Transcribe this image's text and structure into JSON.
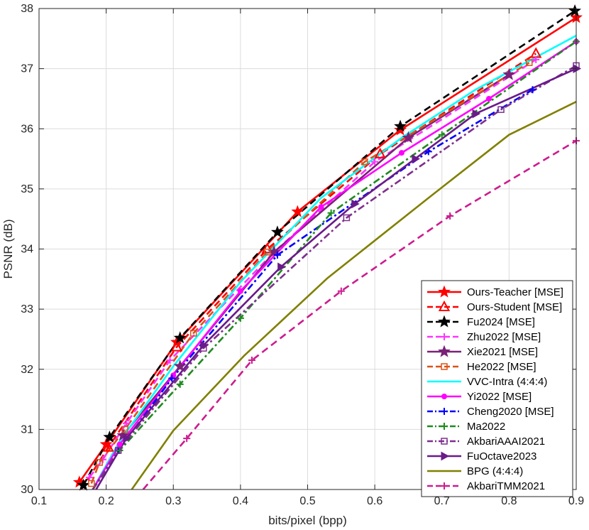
{
  "chart_data": {
    "type": "line",
    "title": "",
    "xlabel": "bits/pixel (bpp)",
    "ylabel": "PSNR (dB)",
    "xlim": [
      0.1,
      0.9
    ],
    "ylim": [
      30,
      38
    ],
    "grid": true,
    "legend_position": "bottom-right",
    "xticks": [
      "0.1",
      "0.2",
      "0.3",
      "0.4",
      "0.5",
      "0.6",
      "0.7",
      "0.8",
      "0.9"
    ],
    "yticks": [
      "30",
      "31",
      "32",
      "33",
      "34",
      "35",
      "36",
      "37",
      "38"
    ],
    "series": [
      {
        "name": "Ours-Teacher [MSE]",
        "color": "#ff0000",
        "dash": "solid",
        "marker": "star",
        "x": [
          0.16,
          0.2,
          0.305,
          0.485,
          0.638,
          0.9
        ],
        "y": [
          30.12,
          30.75,
          32.45,
          34.62,
          35.98,
          37.85
        ]
      },
      {
        "name": "Ours-Student [MSE]",
        "color": "#ff0000",
        "dash": "dashed",
        "marker": "triangle",
        "x": [
          0.163,
          0.203,
          0.305,
          0.44,
          0.608,
          0.84
        ],
        "y": [
          30.0,
          30.7,
          32.37,
          34.0,
          35.58,
          37.25
        ]
      },
      {
        "name": "Fu2024 [MSE]",
        "color": "#000000",
        "dash": "dashed",
        "marker": "star",
        "x": [
          0.166,
          0.205,
          0.31,
          0.455,
          0.638,
          0.898
        ],
        "y": [
          30.07,
          30.87,
          32.52,
          34.28,
          36.04,
          37.96
        ]
      },
      {
        "name": "Zhu2022 [MSE]",
        "color": "#ff33ff",
        "dash": "dashed",
        "marker": "plus",
        "x": [
          0.175,
          0.195,
          0.23,
          0.295,
          0.45,
          0.6,
          0.84
        ],
        "y": [
          30.2,
          30.5,
          31.1,
          32.15,
          33.95,
          35.45,
          37.15
        ]
      },
      {
        "name": "Xie2021 [MSE]",
        "color": "#7a2178",
        "dash": "solid",
        "marker": "star",
        "x": [
          0.18,
          0.225,
          0.31,
          0.45,
          0.65,
          0.8
        ],
        "y": [
          30.0,
          30.9,
          32.05,
          33.95,
          35.85,
          36.9
        ]
      },
      {
        "name": "He2022 [MSE]",
        "color": "#d95319",
        "dash": "dashed",
        "marker": "square",
        "x": [
          0.178,
          0.19,
          0.228,
          0.33,
          0.44,
          0.585,
          0.83
        ],
        "y": [
          30.1,
          30.45,
          31.0,
          32.6,
          33.95,
          35.45,
          37.1
        ]
      },
      {
        "name": "VVC-Intra (4:4:4)",
        "color": "#00ffff",
        "dash": "solid",
        "marker": "none",
        "x": [
          0.18,
          0.22,
          0.3,
          0.4,
          0.52,
          0.64,
          0.75,
          0.9
        ],
        "y": [
          30.0,
          30.8,
          32.05,
          33.45,
          34.85,
          35.85,
          36.65,
          37.55
        ]
      },
      {
        "name": "Yi2022 [MSE]",
        "color": "#ff00ff",
        "dash": "solid",
        "marker": "circle",
        "x": [
          0.18,
          0.22,
          0.3,
          0.4,
          0.52,
          0.64,
          0.77,
          0.9
        ],
        "y": [
          30.0,
          30.75,
          31.9,
          33.3,
          34.7,
          35.6,
          36.5,
          37.45
        ]
      },
      {
        "name": "Cheng2020 [MSE]",
        "color": "#0000ff",
        "dash": "dashdot",
        "marker": "plus",
        "x": [
          0.18,
          0.218,
          0.298,
          0.455,
          0.68,
          0.835
        ],
        "y": [
          30.0,
          30.65,
          31.85,
          33.9,
          35.62,
          36.65
        ]
      },
      {
        "name": "Ma2022",
        "color": "#1f8a1f",
        "dash": "dashdot",
        "marker": "plus",
        "x": [
          0.18,
          0.22,
          0.31,
          0.4,
          0.535,
          0.7,
          0.9
        ],
        "y": [
          30.0,
          30.65,
          31.75,
          32.85,
          34.6,
          35.9,
          37.45
        ]
      },
      {
        "name": "AkbariAAAI2021",
        "color": "#7e2f8e",
        "dash": "dashdot",
        "marker": "square",
        "x": [
          0.18,
          0.218,
          0.345,
          0.558,
          0.788,
          0.9
        ],
        "y": [
          30.0,
          30.65,
          32.35,
          34.52,
          36.32,
          37.05
        ]
      },
      {
        "name": "FuOctave2023",
        "color": "#6a1a8a",
        "dash": "solid",
        "marker": "triangle-right",
        "x": [
          0.185,
          0.23,
          0.345,
          0.46,
          0.57,
          0.66,
          0.75,
          0.9
        ],
        "y": [
          30.0,
          30.85,
          32.4,
          33.7,
          34.75,
          35.5,
          36.25,
          37.0
        ]
      },
      {
        "name": "BPG (4:4:4)",
        "color": "#808000",
        "dash": "solid",
        "marker": "none",
        "x": [
          0.238,
          0.3,
          0.405,
          0.53,
          0.68,
          0.8,
          0.9
        ],
        "y": [
          30.0,
          30.98,
          32.22,
          33.52,
          34.85,
          35.9,
          36.45
        ]
      },
      {
        "name": "AkbariTMM2021",
        "color": "#cc1c8f",
        "dash": "dashed",
        "marker": "plus",
        "x": [
          0.255,
          0.32,
          0.417,
          0.55,
          0.712,
          0.9
        ],
        "y": [
          30.0,
          30.85,
          32.15,
          33.3,
          34.55,
          35.8
        ]
      }
    ]
  }
}
